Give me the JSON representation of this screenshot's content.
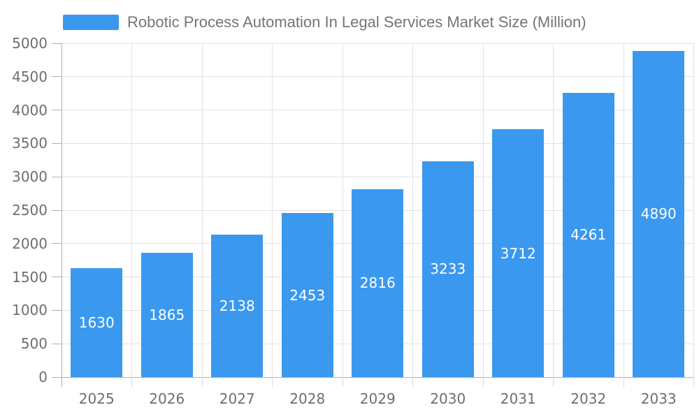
{
  "chart_data": {
    "type": "bar",
    "title": "Robotic Process Automation In Legal Services Market Size (Million)",
    "series_name": "Robotic Process Automation In Legal Services Market Size (Million)",
    "categories": [
      "2025",
      "2026",
      "2027",
      "2028",
      "2029",
      "2030",
      "2031",
      "2032",
      "2033"
    ],
    "values": [
      1630,
      1865,
      2138,
      2453,
      2816,
      3233,
      3712,
      4261,
      4890
    ],
    "xlabel": "",
    "ylabel": "",
    "ylim": [
      0,
      5000
    ],
    "ytick_step": 500,
    "ytick_labels": [
      "0",
      "500",
      "1000",
      "1500",
      "2000",
      "2500",
      "3000",
      "3500",
      "4000",
      "4500",
      "5000"
    ],
    "grid": true,
    "legend_position": "top",
    "value_labels_inside_bars": true,
    "colors": {
      "bar": "#3A99EE",
      "grid": "#E2E2E2",
      "axis": "#B0B0B0",
      "x_tick": "#D9D9D9",
      "tick_label_text": "#6E6E6E",
      "legend_text": "#757575",
      "value_label_text": "#FFFFFF",
      "background": "#FFFFFF"
    }
  }
}
